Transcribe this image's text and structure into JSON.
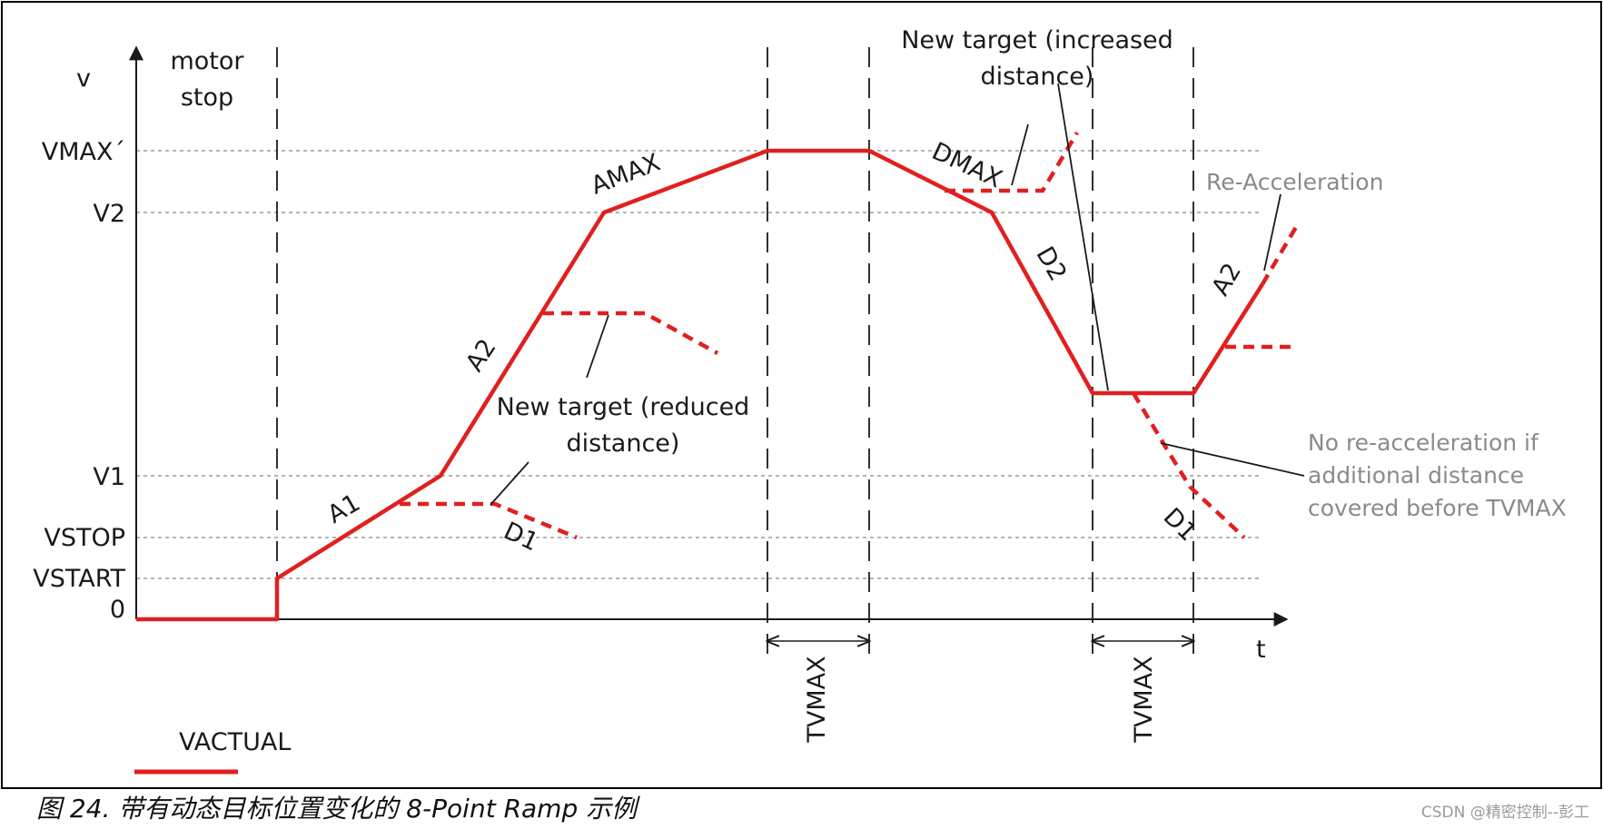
{
  "axes": {
    "y_label": "v",
    "x_label": "t",
    "y_levels": [
      "VMAX´",
      "V2",
      "V1",
      "VSTOP",
      "VSTART",
      "0"
    ]
  },
  "labels": {
    "motor_stop_1": "motor",
    "motor_stop_2": "stop",
    "a1": "A1",
    "a2": "A2",
    "amax": "AMAX",
    "dmax": "DMAX",
    "d2": "D2",
    "d1_left": "D1",
    "d1_right": "D1",
    "a2_right": "A2",
    "tvmax_1": "TVMAX",
    "tvmax_2": "TVMAX"
  },
  "annotations": {
    "reduced_1": "New target (reduced",
    "reduced_2": "distance)",
    "increased_1": "New target (increased",
    "increased_2": "distance)",
    "reacceleration": "Re-Acceleration",
    "no_reacc_1": "No re-acceleration if",
    "no_reacc_2": "additional distance",
    "no_reacc_3": "covered before TVMAX"
  },
  "legend": {
    "label": "VACTUAL"
  },
  "caption": "图 24. 带有动态目标位置变化的 8-Point Ramp 示例",
  "watermark": "CSDN @精密控制--彭工",
  "colors": {
    "ramp": "#e02020",
    "axis": "#1a1a1a",
    "grid": "#888888",
    "frame": "#000000"
  }
}
